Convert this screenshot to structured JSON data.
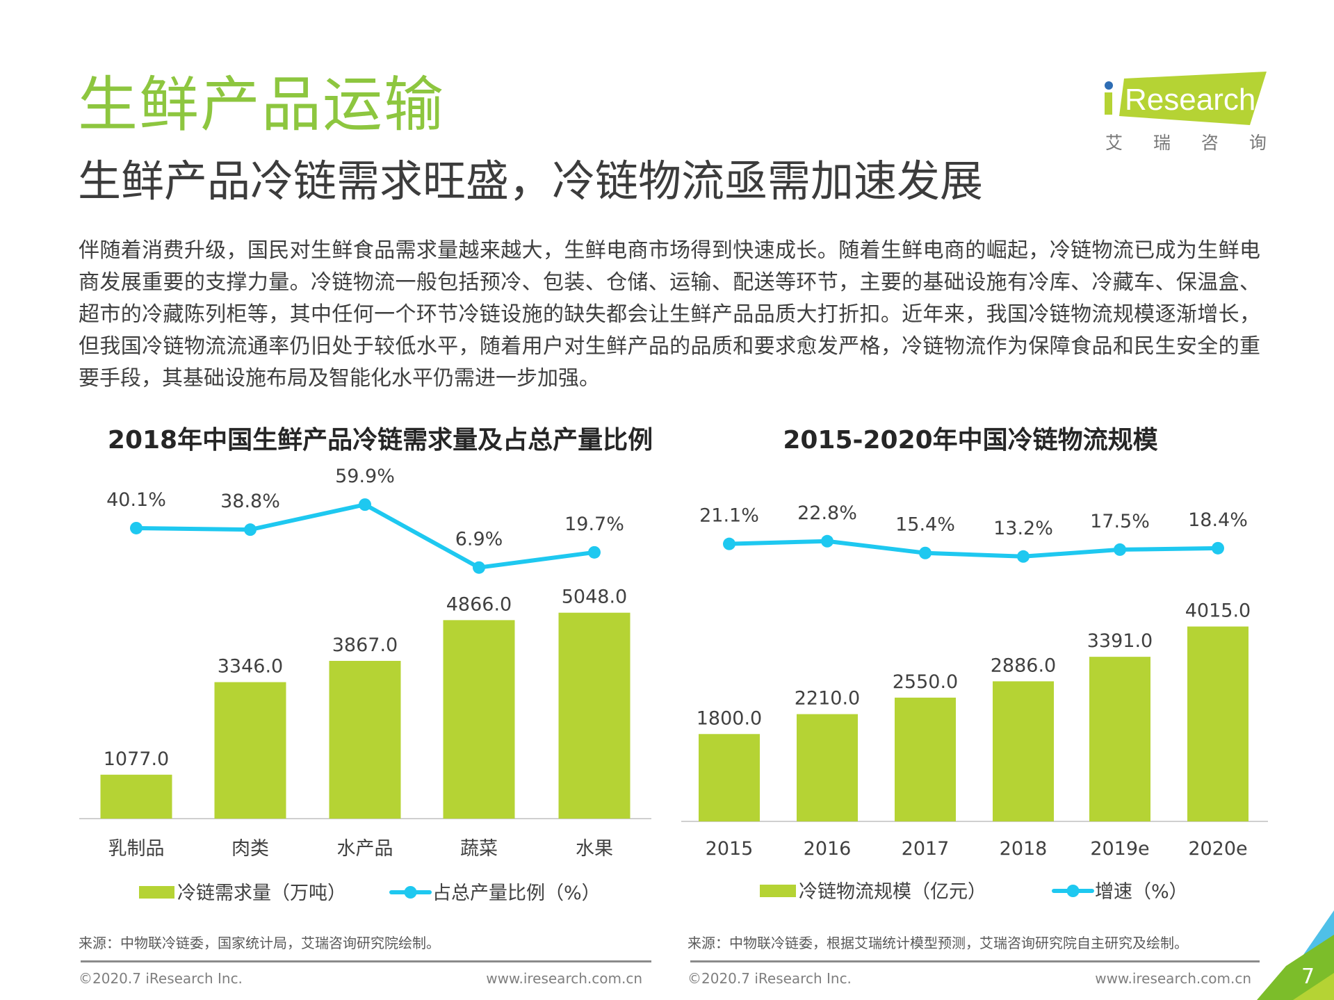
{
  "logo": {
    "text": "iResearch",
    "cn": "艾 瑞 咨 询",
    "green": "#b5d334",
    "dot": "#2e6db4"
  },
  "header": {
    "title": "生鲜产品运输",
    "subtitle": "生鲜产品冷链需求旺盛，冷链物流亟需加速发展"
  },
  "body_text": "伴随着消费升级，国民对生鲜食品需求量越来越大，生鲜电商市场得到快速成长。随着生鲜电商的崛起，冷链物流已成为生鲜电商发展重要的支撑力量。冷链物流一般包括预冷、包装、仓储、运输、配送等环节，主要的基础设施有冷库、冷藏车、保温盒、超市的冷藏陈列柜等，其中任何一个环节冷链设施的缺失都会让生鲜产品品质大打折扣。近年来，我国冷链物流规模逐渐增长，但我国冷链物流流通率仍旧处于较低水平，随着用户对生鲜产品的品质和要求愈发严格，冷链物流作为保障食品和民生安全的重要手段，其基础设施布局及智能化水平仍需进一步加强。",
  "colors": {
    "bar": "#b5d334",
    "line": "#1ec8f0",
    "title_green": "#8dc63f"
  },
  "chart_data": [
    {
      "type": "bar",
      "title": "2018年中国生鲜产品冷链需求量及占总产量比例",
      "categories": [
        "乳制品",
        "肉类",
        "水产品",
        "蔬菜",
        "水果"
      ],
      "series": [
        {
          "name": "冷链需求量（万吨）",
          "type": "bar",
          "values": [
            1077.0,
            3346.0,
            3867.0,
            4866.0,
            5048.0
          ],
          "labels": [
            "1077.0",
            "3346.0",
            "3867.0",
            "4866.0",
            "5048.0"
          ]
        },
        {
          "name": "占总产量比例（%）",
          "type": "line",
          "values": [
            40.1,
            38.8,
            59.9,
            6.9,
            19.7
          ],
          "labels": [
            "40.1%",
            "38.8%",
            "59.9%",
            "6.9%",
            "19.7%"
          ]
        }
      ],
      "legend": "bottom",
      "grid": false
    },
    {
      "type": "bar",
      "title": "2015-2020年中国冷链物流规模",
      "categories": [
        "2015",
        "2016",
        "2017",
        "2018",
        "2019e",
        "2020e"
      ],
      "series": [
        {
          "name": "冷链物流规模（亿元）",
          "type": "bar",
          "values": [
            1800.0,
            2210.0,
            2550.0,
            2886.0,
            3391.0,
            4015.0
          ],
          "labels": [
            "1800.0",
            "2210.0",
            "2550.0",
            "2886.0",
            "3391.0",
            "4015.0"
          ]
        },
        {
          "name": "增速（%）",
          "type": "line",
          "values": [
            21.1,
            22.8,
            15.4,
            13.2,
            17.5,
            18.4
          ],
          "labels": [
            "21.1%",
            "22.8%",
            "15.4%",
            "13.2%",
            "17.5%",
            "18.4%"
          ]
        }
      ],
      "legend": "bottom",
      "grid": false
    }
  ],
  "footer": {
    "left": {
      "source": "来源：中物联冷链委，国家统计局，艾瑞咨询研究院绘制。",
      "copyright": "©2020.7 iResearch Inc.",
      "url": "www.iresearch.com.cn"
    },
    "right": {
      "source": "来源：中物联冷链委，根据艾瑞统计模型预测，艾瑞咨询研究院自主研究及绘制。",
      "copyright": "©2020.7 iResearch Inc.",
      "url": "www.iresearch.com.cn"
    },
    "page_number": "7"
  }
}
